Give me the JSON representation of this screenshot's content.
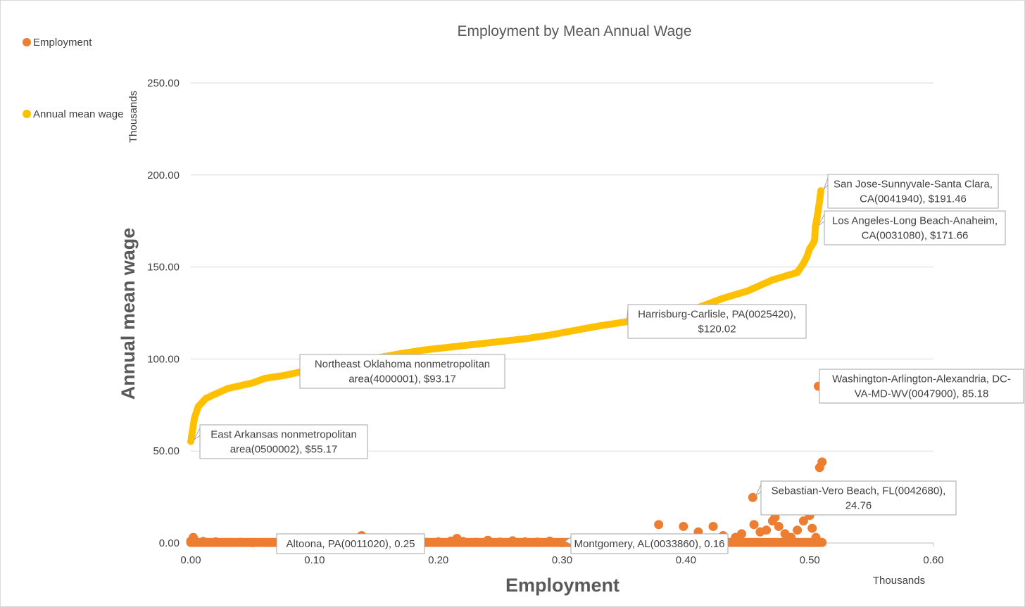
{
  "chart_data": {
    "type": "scatter",
    "title": "Employment by Mean Annual Wage",
    "xlabel": "Employment",
    "ylabel": "Annual mean wage",
    "x_unit_label": "Thousands",
    "y_unit_label": "Thousands",
    "xlim": [
      0,
      0.6
    ],
    "ylim": [
      0,
      250
    ],
    "x_ticks": [
      "0.00",
      "0.10",
      "0.20",
      "0.30",
      "0.40",
      "0.50",
      "0.60"
    ],
    "y_ticks": [
      "0.00",
      "50.00",
      "100.00",
      "150.00",
      "200.00",
      "250.00"
    ],
    "grid": "horizontal",
    "legend_position": "left",
    "series": [
      {
        "name": "Employment",
        "color": "#ED7D31",
        "points": [
          [
            0.0,
            1.0
          ],
          [
            0.002,
            3.0
          ],
          [
            0.005,
            0.5
          ],
          [
            0.01,
            0.8
          ],
          [
            0.02,
            0.6
          ],
          [
            0.03,
            0.3
          ],
          [
            0.04,
            0.4
          ],
          [
            0.05,
            0.2
          ],
          [
            0.06,
            0.3
          ],
          [
            0.07,
            0.25
          ],
          [
            0.08,
            0.2
          ],
          [
            0.09,
            0.3
          ],
          [
            0.1,
            0.25
          ],
          [
            0.11,
            0.3
          ],
          [
            0.12,
            0.2
          ],
          [
            0.13,
            0.4
          ],
          [
            0.138,
            4.0
          ],
          [
            0.15,
            0.3
          ],
          [
            0.16,
            0.2
          ],
          [
            0.17,
            0.5
          ],
          [
            0.18,
            0.3
          ],
          [
            0.19,
            0.4
          ],
          [
            0.2,
            0.6
          ],
          [
            0.21,
            1.0
          ],
          [
            0.215,
            2.5
          ],
          [
            0.22,
            0.8
          ],
          [
            0.23,
            0.4
          ],
          [
            0.24,
            1.5
          ],
          [
            0.25,
            0.5
          ],
          [
            0.26,
            1.2
          ],
          [
            0.27,
            0.6
          ],
          [
            0.28,
            0.5
          ],
          [
            0.29,
            1.0
          ],
          [
            0.3,
            0.16
          ],
          [
            0.31,
            0.4
          ],
          [
            0.32,
            0.8
          ],
          [
            0.33,
            1.2
          ],
          [
            0.34,
            0.6
          ],
          [
            0.35,
            0.9
          ],
          [
            0.36,
            1.4
          ],
          [
            0.37,
            1.8
          ],
          [
            0.378,
            10.0
          ],
          [
            0.39,
            1.5
          ],
          [
            0.398,
            9.0
          ],
          [
            0.41,
            6.0
          ],
          [
            0.42,
            2.0
          ],
          [
            0.422,
            9.0
          ],
          [
            0.43,
            4.0
          ],
          [
            0.44,
            3.0
          ],
          [
            0.445,
            5.0
          ],
          [
            0.454,
            24.76
          ],
          [
            0.455,
            10.0
          ],
          [
            0.46,
            6.0
          ],
          [
            0.465,
            7.0
          ],
          [
            0.47,
            12.0
          ],
          [
            0.472,
            14.0
          ],
          [
            0.475,
            9.0
          ],
          [
            0.48,
            5.0
          ],
          [
            0.485,
            3.0
          ],
          [
            0.49,
            7.0
          ],
          [
            0.495,
            12.0
          ],
          [
            0.5,
            15.0
          ],
          [
            0.502,
            8.0
          ],
          [
            0.505,
            3.0
          ],
          [
            0.507,
            85.18
          ],
          [
            0.508,
            41.0
          ],
          [
            0.51,
            44.0
          ],
          [
            0.51,
            17.5
          ]
        ],
        "annotations": [
          {
            "x": 0.075,
            "y": 0.25,
            "text": "Altoona, PA(0011020), 0.25"
          },
          {
            "x": 0.3,
            "y": 0.16,
            "text": "Montgomery, AL(0033860), 0.16"
          },
          {
            "x": 0.454,
            "y": 24.76,
            "text": [
              "Sebastian-Vero Beach, FL(0042680),",
              "24.76"
            ]
          },
          {
            "x": 0.507,
            "y": 85.18,
            "text": [
              "Washington-Arlington-Alexandria, DC-",
              "VA-MD-WV(0047900), 85.18"
            ]
          }
        ]
      },
      {
        "name": "Annual mean wage",
        "color": "#FFC000",
        "curve": [
          [
            0.0,
            55.17
          ],
          [
            0.003,
            68.0
          ],
          [
            0.006,
            74.0
          ],
          [
            0.012,
            78.5
          ],
          [
            0.02,
            81.0
          ],
          [
            0.03,
            84.0
          ],
          [
            0.04,
            85.5
          ],
          [
            0.05,
            87.0
          ],
          [
            0.06,
            89.5
          ],
          [
            0.075,
            91.0
          ],
          [
            0.09,
            93.17
          ],
          [
            0.11,
            95.5
          ],
          [
            0.13,
            98.0
          ],
          [
            0.15,
            100.5
          ],
          [
            0.17,
            103.0
          ],
          [
            0.19,
            105.0
          ],
          [
            0.21,
            106.5
          ],
          [
            0.23,
            108.0
          ],
          [
            0.25,
            109.5
          ],
          [
            0.27,
            111.0
          ],
          [
            0.29,
            113.0
          ],
          [
            0.31,
            115.5
          ],
          [
            0.33,
            118.0
          ],
          [
            0.35,
            120.02
          ],
          [
            0.37,
            122.5
          ],
          [
            0.39,
            125.0
          ],
          [
            0.41,
            128.0
          ],
          [
            0.43,
            133.0
          ],
          [
            0.45,
            137.0
          ],
          [
            0.47,
            143.0
          ],
          [
            0.49,
            147.0
          ],
          [
            0.495,
            152.0
          ],
          [
            0.498,
            156.0
          ],
          [
            0.5,
            160.0
          ],
          [
            0.503,
            163.0
          ],
          [
            0.504,
            165.0
          ],
          [
            0.5045,
            171.66
          ],
          [
            0.506,
            177.0
          ],
          [
            0.508,
            186.0
          ],
          [
            0.509,
            191.46
          ]
        ],
        "annotations": [
          {
            "x": 0.0,
            "y": 55.17,
            "text": [
              "East Arkansas nonmetropolitan",
              "area(0500002), $55.17"
            ]
          },
          {
            "x": 0.09,
            "y": 93.17,
            "text": [
              "Northeast Oklahoma nonmetropolitan",
              "area(4000001), $93.17"
            ]
          },
          {
            "x": 0.35,
            "y": 120.02,
            "text": [
              "Harrisburg-Carlisle, PA(0025420),",
              "$120.02"
            ]
          },
          {
            "x": 0.5045,
            "y": 171.66,
            "text": [
              "Los Angeles-Long Beach-Anaheim,",
              "CA(0031080), $171.66"
            ]
          },
          {
            "x": 0.509,
            "y": 191.46,
            "text": [
              "San Jose-Sunnyvale-Santa Clara,",
              "CA(0041940), $191.46"
            ]
          }
        ]
      }
    ]
  }
}
